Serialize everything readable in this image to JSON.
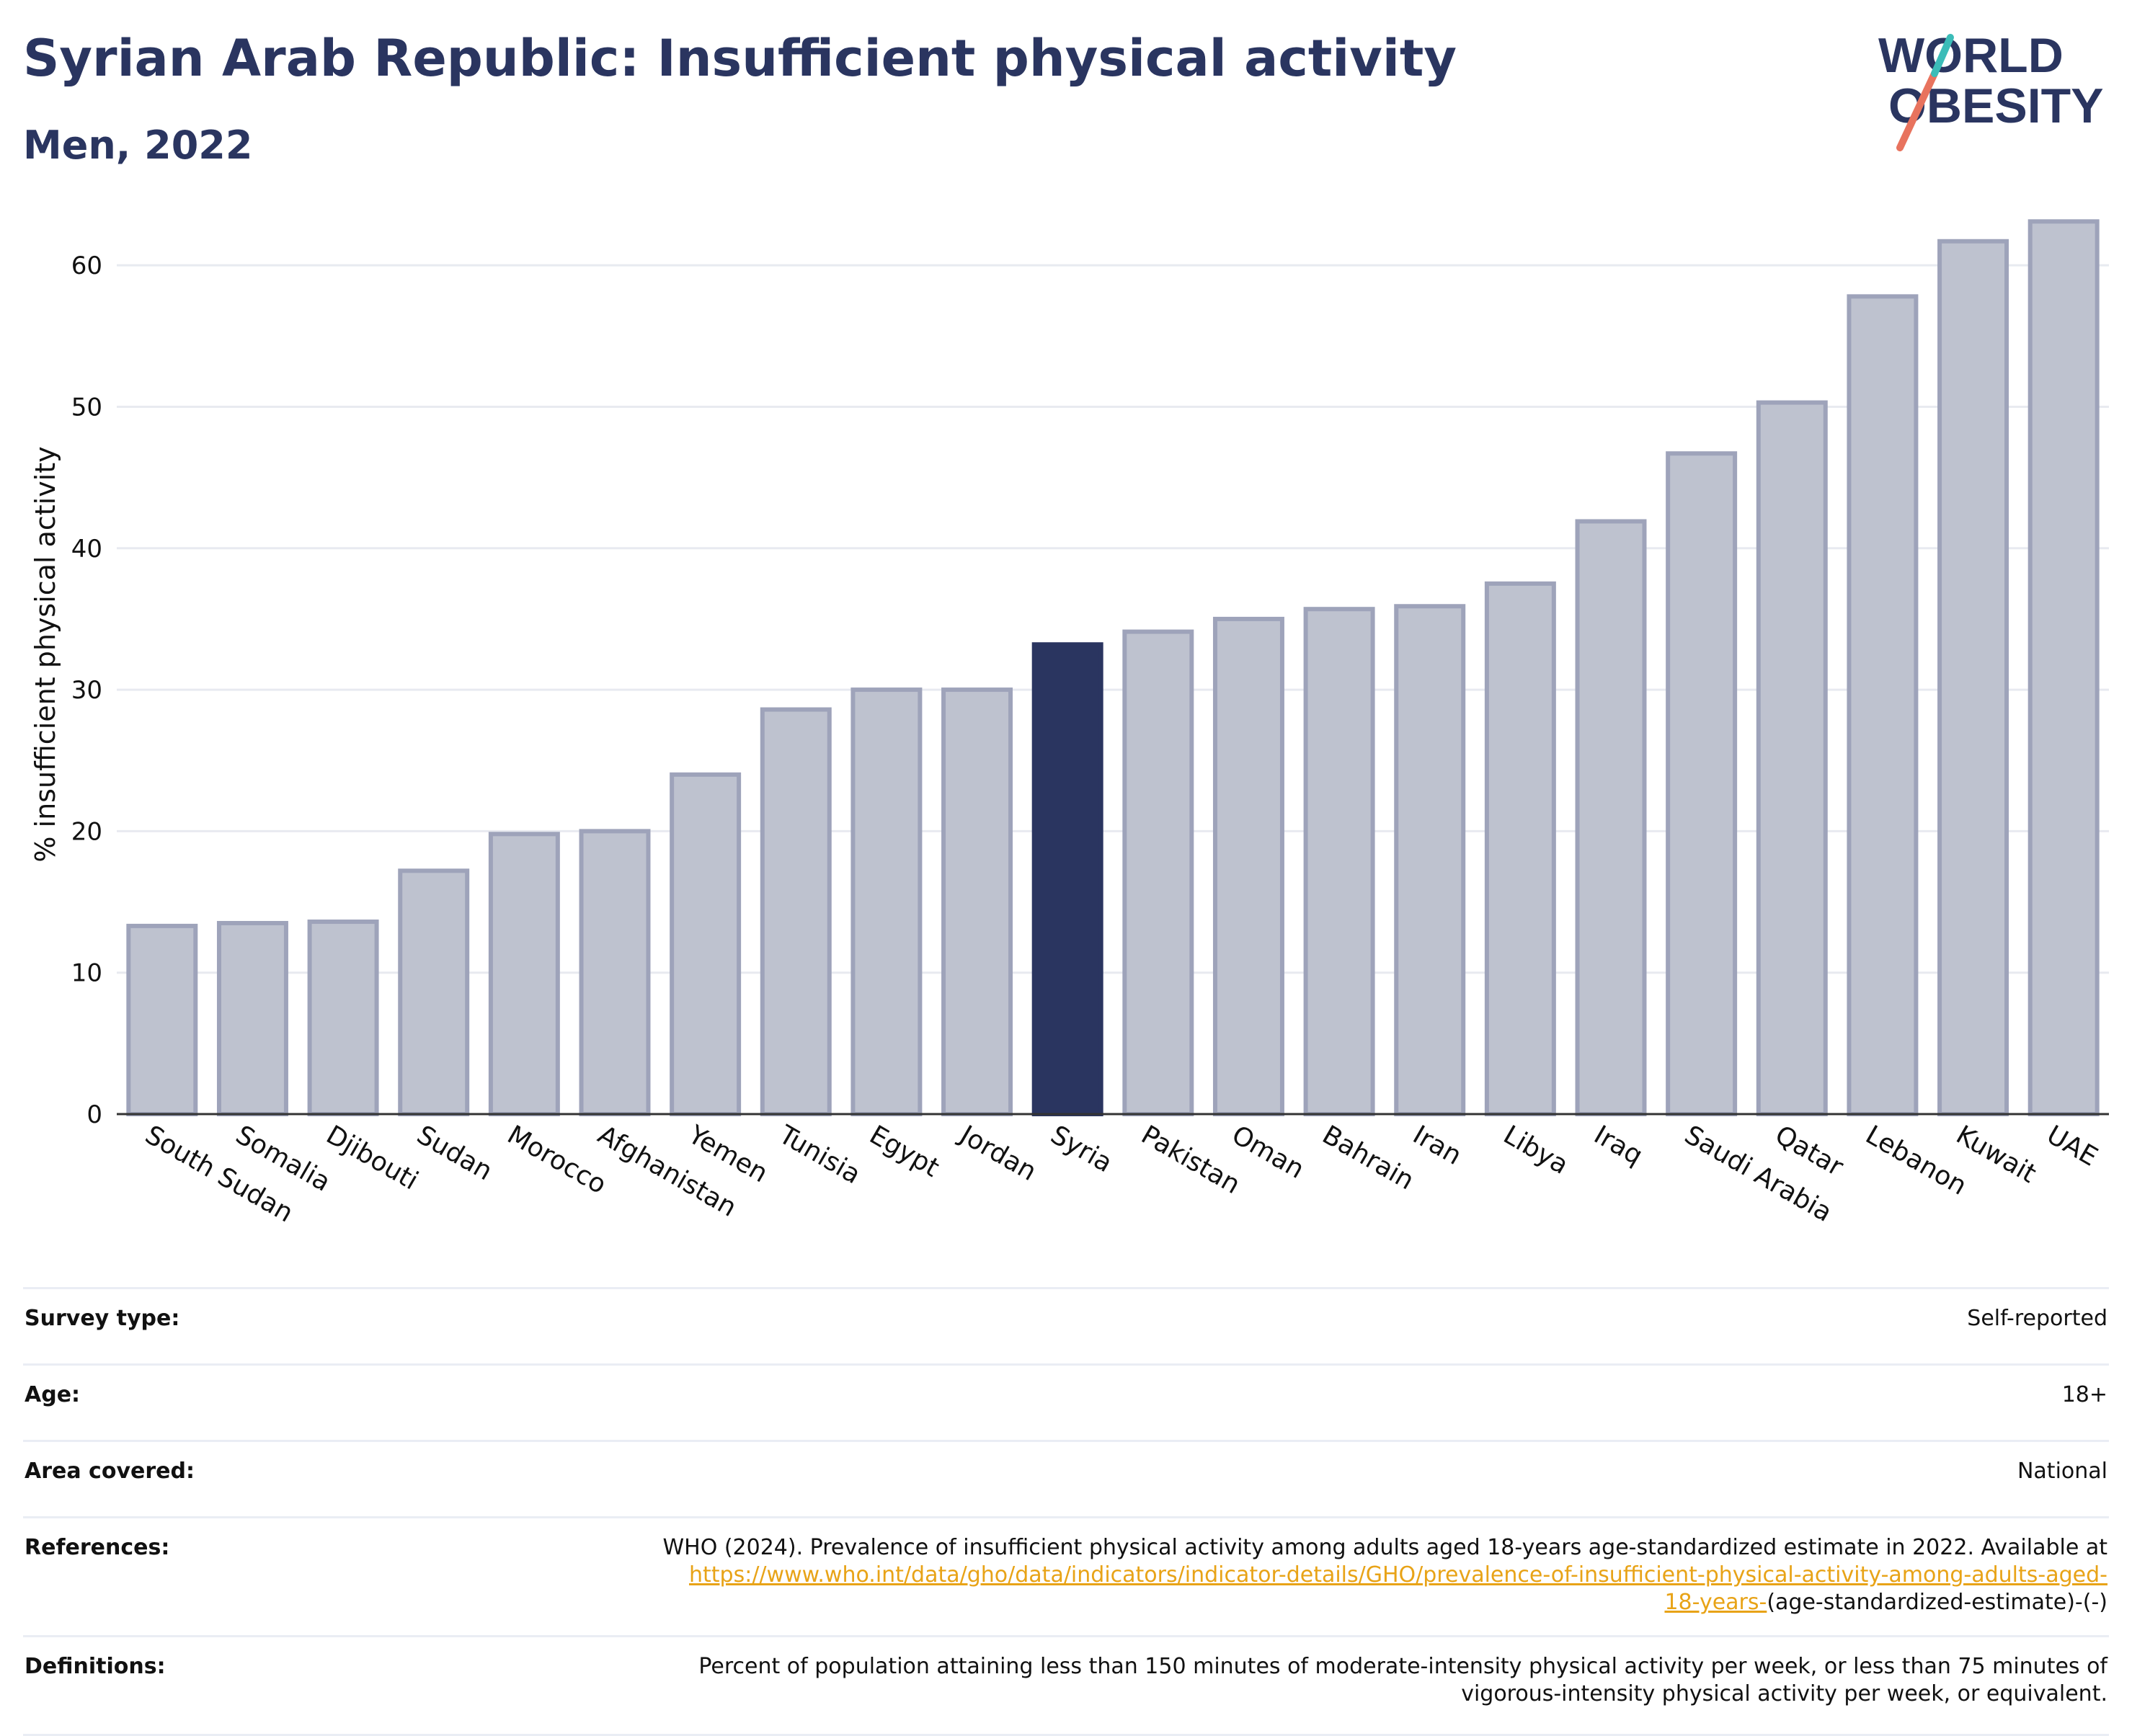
{
  "header": {
    "title": "Syrian Arab Republic: Insufficient physical activity",
    "subtitle": "Men, 2022"
  },
  "logo": {
    "line1": "WORLD",
    "line2": "OBESITY",
    "colors": {
      "text": "#2a3560",
      "slash_coral": "#e8735e",
      "slash_teal": "#3bbcb8"
    }
  },
  "colors": {
    "bar": "#bec2cf",
    "bar_stroke": "#9ea3ba",
    "highlight": "#2a3560",
    "grid": "#e8eaf0",
    "axis": "#333333",
    "link": "#e8a317"
  },
  "chart_data": {
    "type": "bar",
    "title": "Syrian Arab Republic: Insufficient physical activity",
    "subtitle": "Men, 2022",
    "xlabel": "",
    "ylabel": "% insufficient physical activity",
    "ylim": [
      0,
      65
    ],
    "yticks": [
      0,
      10,
      20,
      30,
      40,
      50,
      60
    ],
    "grid": true,
    "highlight": "Syria",
    "categories": [
      "South Sudan",
      "Somalia",
      "Djibouti",
      "Sudan",
      "Morocco",
      "Afghanistan",
      "Yemen",
      "Tunisia",
      "Egypt",
      "Jordan",
      "Syria",
      "Pakistan",
      "Oman",
      "Bahrain",
      "Iran",
      "Libya",
      "Iraq",
      "Saudi Arabia",
      "Qatar",
      "Lebanon",
      "Kuwait",
      "UAE"
    ],
    "values": [
      13.3,
      13.5,
      13.6,
      17.2,
      19.8,
      20.0,
      24.0,
      28.6,
      30.0,
      30.0,
      33.2,
      34.1,
      35.0,
      35.7,
      35.9,
      37.5,
      41.9,
      46.7,
      50.3,
      57.8,
      61.7,
      63.1
    ]
  },
  "info": {
    "survey_type": {
      "label": "Survey type:",
      "value": "Self-reported"
    },
    "age": {
      "label": "Age:",
      "value": "18+"
    },
    "area": {
      "label": "Area covered:",
      "value": "National"
    },
    "references": {
      "label": "References:",
      "text_line1": "WHO (2024). Prevalence of insufficient physical activity among adults aged 18-years age-standardized estimate in 2022. Available at",
      "link_line1": "https://www.who.int/data/gho/data/indicators/indicator-details/GHO/prevalence-of-insufficient-physical-activity-among-adults-aged-",
      "link_line2": "18-years-",
      "suffix": "(age-standardized-estimate)-(-)"
    },
    "definitions": {
      "label": "Definitions:",
      "line1": "Percent of population attaining less than 150 minutes of moderate-intensity physical activity per week, or less than 75 minutes of",
      "line2": "vigorous-intensity physical activity per week, or equivalent."
    }
  }
}
